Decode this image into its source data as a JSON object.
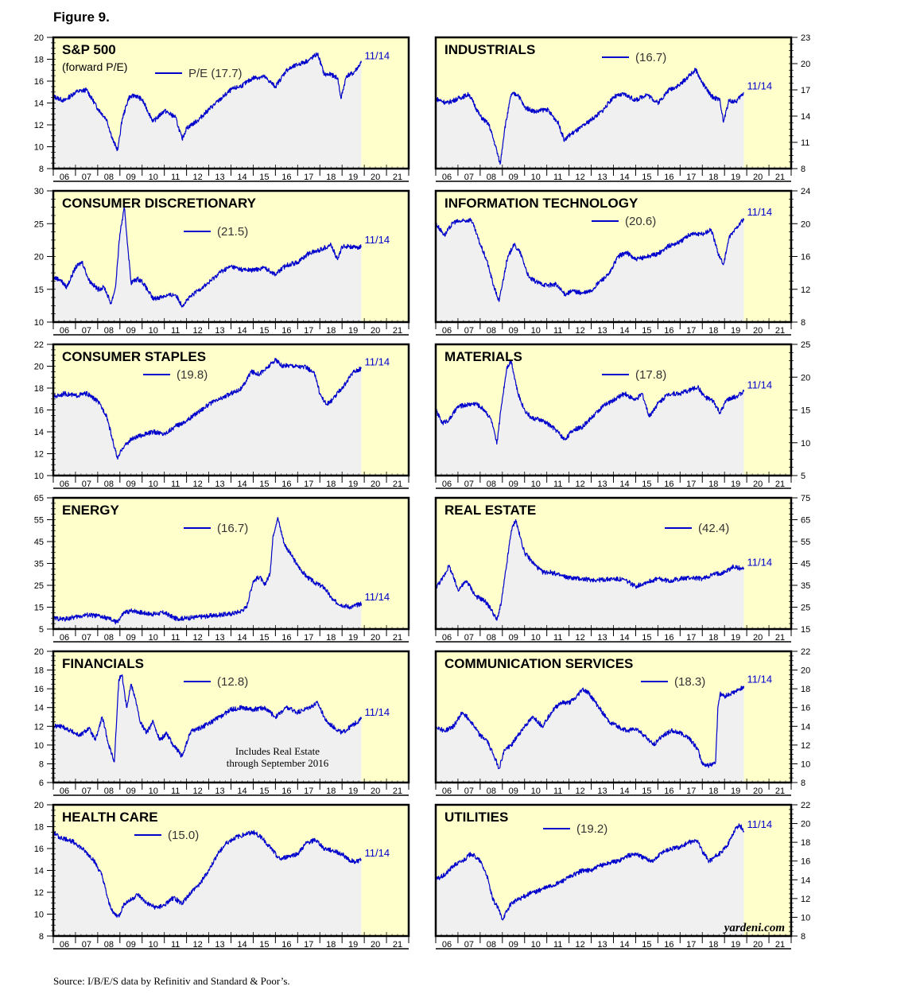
{
  "figure": {
    "title": "Figure 9.",
    "source": "Source: I/B/E/S data by Refinitiv and Standard & Poor’s.",
    "watermark": "yardeni.com"
  },
  "style": {
    "background": "#ffffcc",
    "shade": "#f0f0f0",
    "line": "#0000cc",
    "label": "#0000cc",
    "frame": "#000000"
  },
  "chart_data": [
    {
      "type": "line",
      "id": "sp500",
      "title": "S&P 500",
      "subtitle": "(forward P/E)",
      "legend": "P/E (17.7)",
      "end_label": "11/14",
      "ylim": [
        8,
        20
      ],
      "yticks": [
        8,
        10,
        12,
        14,
        16,
        18,
        20
      ],
      "axis_side": "left",
      "start_year": 2006,
      "end_year": 2022,
      "x": [
        2006.0,
        2006.5,
        2007.0,
        2007.5,
        2008.0,
        2008.4,
        2008.7,
        2008.9,
        2009.1,
        2009.4,
        2009.7,
        2010.0,
        2010.5,
        2011.0,
        2011.5,
        2011.8,
        2012.0,
        2012.5,
        2013.0,
        2013.5,
        2014.0,
        2014.5,
        2015.0,
        2015.5,
        2016.0,
        2016.5,
        2017.0,
        2017.5,
        2017.9,
        2018.2,
        2018.5,
        2018.8,
        2018.95,
        2019.2,
        2019.5,
        2019.87
      ],
      "y": [
        14.6,
        14.2,
        15.0,
        15.2,
        13.5,
        12.5,
        10.5,
        9.7,
        12.5,
        14.5,
        14.7,
        14.3,
        12.3,
        13.3,
        12.7,
        10.7,
        11.7,
        12.4,
        13.4,
        14.3,
        15.2,
        15.6,
        16.3,
        16.4,
        15.5,
        17.0,
        17.5,
        17.9,
        18.5,
        16.6,
        16.6,
        16.3,
        14.4,
        16.5,
        16.7,
        17.7
      ]
    },
    {
      "type": "line",
      "id": "industrials",
      "title": "INDUSTRIALS",
      "legend": "(16.7)",
      "end_label": "11/14",
      "ylim": [
        8,
        23
      ],
      "yticks": [
        8,
        11,
        14,
        17,
        20,
        23
      ],
      "axis_side": "right",
      "start_year": 2006,
      "end_year": 2022,
      "x": [
        2006.0,
        2006.5,
        2007.0,
        2007.5,
        2008.0,
        2008.4,
        2008.7,
        2008.9,
        2009.1,
        2009.4,
        2009.7,
        2010.0,
        2010.5,
        2011.0,
        2011.5,
        2011.8,
        2012.0,
        2012.5,
        2013.0,
        2013.5,
        2014.0,
        2014.5,
        2015.0,
        2015.5,
        2016.0,
        2016.5,
        2017.0,
        2017.4,
        2017.7,
        2018.0,
        2018.4,
        2018.8,
        2018.95,
        2019.2,
        2019.5,
        2019.87
      ],
      "y": [
        16.0,
        15.5,
        16.0,
        16.5,
        14.0,
        13.0,
        10.5,
        8.5,
        12.5,
        16.5,
        16.5,
        15.0,
        14.5,
        14.8,
        13.3,
        11.2,
        11.8,
        12.6,
        13.6,
        14.6,
        16.2,
        16.5,
        15.8,
        16.5,
        15.5,
        17.0,
        17.6,
        18.6,
        19.3,
        17.8,
        16.3,
        15.8,
        13.3,
        15.8,
        15.6,
        16.7
      ]
    },
    {
      "type": "line",
      "id": "consumer_discretionary",
      "title": "CONSUMER DISCRETIONARY",
      "legend": "(21.5)",
      "end_label": "11/14",
      "ylim": [
        10,
        30
      ],
      "yticks": [
        10,
        15,
        20,
        25,
        30
      ],
      "axis_side": "left",
      "start_year": 2006,
      "end_year": 2022,
      "x": [
        2006.0,
        2006.3,
        2006.6,
        2007.0,
        2007.3,
        2007.6,
        2008.0,
        2008.3,
        2008.6,
        2008.8,
        2009.0,
        2009.2,
        2009.5,
        2009.8,
        2010.0,
        2010.5,
        2011.0,
        2011.5,
        2011.8,
        2012.0,
        2012.5,
        2013.0,
        2013.5,
        2014.0,
        2014.5,
        2015.0,
        2015.5,
        2016.0,
        2016.5,
        2017.0,
        2017.5,
        2018.0,
        2018.5,
        2018.8,
        2019.0,
        2019.3,
        2019.6,
        2019.87
      ],
      "y": [
        16.8,
        16.5,
        15.3,
        18.3,
        19.2,
        16.4,
        15.0,
        15.3,
        12.8,
        15.3,
        23.5,
        27.4,
        16.0,
        16.6,
        16.2,
        13.5,
        14.0,
        14.2,
        12.5,
        13.3,
        14.8,
        16.0,
        17.6,
        18.5,
        18.0,
        17.9,
        18.3,
        17.3,
        18.7,
        19.1,
        20.5,
        21.0,
        21.8,
        19.5,
        21.5,
        21.6,
        21.3,
        21.5
      ]
    },
    {
      "type": "line",
      "id": "information_technology",
      "title": "INFORMATION TECHNOLOGY",
      "legend": "(20.6)",
      "end_label": "11/14",
      "ylim": [
        8,
        24
      ],
      "yticks": [
        8,
        12,
        16,
        20,
        24
      ],
      "axis_side": "right",
      "start_year": 2006,
      "end_year": 2022,
      "x": [
        2006.0,
        2006.4,
        2006.8,
        2007.2,
        2007.6,
        2008.0,
        2008.3,
        2008.6,
        2008.85,
        2009.2,
        2009.5,
        2009.8,
        2010.2,
        2010.6,
        2011.0,
        2011.4,
        2011.8,
        2012.2,
        2012.6,
        2013.0,
        2013.4,
        2013.8,
        2014.2,
        2014.6,
        2015.0,
        2015.5,
        2016.0,
        2016.5,
        2017.0,
        2017.5,
        2018.0,
        2018.4,
        2018.7,
        2018.95,
        2019.2,
        2019.5,
        2019.87
      ],
      "y": [
        20.0,
        18.6,
        20.2,
        20.3,
        20.5,
        17.5,
        15.5,
        12.5,
        10.5,
        15.5,
        17.5,
        16.5,
        13.4,
        12.8,
        12.5,
        12.6,
        11.4,
        11.8,
        11.5,
        11.8,
        13.0,
        13.8,
        16.0,
        16.5,
        15.6,
        16.0,
        16.3,
        17.3,
        17.8,
        18.8,
        18.7,
        19.3,
        16.5,
        15.0,
        18.2,
        19.4,
        20.6
      ]
    },
    {
      "type": "line",
      "id": "consumer_staples",
      "title": "CONSUMER STAPLES",
      "legend": "(19.8)",
      "end_label": "11/14",
      "ylim": [
        10,
        22
      ],
      "yticks": [
        10,
        12,
        14,
        16,
        18,
        20,
        22
      ],
      "axis_side": "left",
      "start_year": 2006,
      "end_year": 2022,
      "x": [
        2006.0,
        2006.5,
        2007.0,
        2007.5,
        2008.0,
        2008.4,
        2008.7,
        2008.9,
        2009.1,
        2009.5,
        2010.0,
        2010.5,
        2011.0,
        2011.5,
        2012.0,
        2012.5,
        2013.0,
        2013.5,
        2014.0,
        2014.5,
        2014.9,
        2015.3,
        2015.6,
        2016.0,
        2016.3,
        2016.7,
        2017.0,
        2017.4,
        2017.8,
        2018.0,
        2018.3,
        2018.6,
        2018.9,
        2019.2,
        2019.5,
        2019.87
      ],
      "y": [
        17.2,
        17.5,
        17.3,
        17.5,
        16.8,
        15.5,
        13.0,
        11.5,
        12.5,
        13.3,
        13.7,
        14.0,
        13.8,
        14.5,
        15.0,
        15.8,
        16.5,
        17.0,
        17.5,
        18.0,
        19.5,
        19.3,
        19.8,
        20.6,
        20.0,
        20.1,
        20.0,
        19.9,
        19.2,
        17.5,
        16.5,
        17.0,
        17.8,
        18.5,
        19.5,
        19.8
      ]
    },
    {
      "type": "line",
      "id": "materials",
      "title": "MATERIALS",
      "legend": "(17.8)",
      "end_label": "11/14",
      "ylim": [
        5,
        25
      ],
      "yticks": [
        5,
        10,
        15,
        20,
        25
      ],
      "axis_side": "right",
      "start_year": 2006,
      "end_year": 2022,
      "x": [
        2006.0,
        2006.3,
        2006.6,
        2007.0,
        2007.4,
        2007.8,
        2008.2,
        2008.5,
        2008.75,
        2008.95,
        2009.2,
        2009.4,
        2009.7,
        2010.0,
        2010.3,
        2010.7,
        2011.0,
        2011.4,
        2011.8,
        2012.2,
        2012.6,
        2013.0,
        2013.5,
        2014.0,
        2014.5,
        2015.0,
        2015.3,
        2015.6,
        2016.0,
        2016.5,
        2017.0,
        2017.4,
        2017.8,
        2018.1,
        2018.5,
        2018.8,
        2019.1,
        2019.5,
        2019.87
      ],
      "y": [
        15.0,
        13.0,
        13.5,
        15.5,
        15.8,
        16.0,
        15.0,
        13.5,
        9.8,
        15.5,
        21.5,
        22.5,
        17.5,
        15.0,
        13.8,
        13.5,
        13.0,
        12.0,
        10.5,
        12.0,
        12.4,
        13.8,
        15.5,
        16.5,
        17.5,
        16.5,
        17.5,
        14.0,
        16.0,
        17.5,
        17.5,
        18.0,
        18.5,
        17.0,
        16.3,
        14.5,
        16.5,
        17.0,
        17.8
      ]
    },
    {
      "type": "line",
      "id": "energy",
      "title": "ENERGY",
      "legend": "(16.7)",
      "end_label": "11/14",
      "ylim": [
        5,
        65
      ],
      "yticks": [
        5,
        15,
        25,
        35,
        45,
        55,
        65
      ],
      "axis_side": "left",
      "start_year": 2006,
      "end_year": 2022,
      "x": [
        2006.0,
        2006.5,
        2007.0,
        2007.5,
        2008.0,
        2008.5,
        2008.85,
        2009.2,
        2009.6,
        2010.0,
        2010.5,
        2011.0,
        2011.5,
        2012.0,
        2012.5,
        2013.0,
        2013.5,
        2014.0,
        2014.4,
        2014.7,
        2015.0,
        2015.3,
        2015.5,
        2015.75,
        2015.9,
        2016.1,
        2016.4,
        2016.7,
        2017.0,
        2017.4,
        2017.8,
        2018.2,
        2018.6,
        2019.0,
        2019.4,
        2019.87
      ],
      "y": [
        10.0,
        9.5,
        10.5,
        11.5,
        11.0,
        9.8,
        8.0,
        12.5,
        13.5,
        12.5,
        11.8,
        12.5,
        9.8,
        10.0,
        10.5,
        11.0,
        11.5,
        12.0,
        13.0,
        15.0,
        27.0,
        29.0,
        25.0,
        30.0,
        48.0,
        56.0,
        44.0,
        39.0,
        34.0,
        29.0,
        26.0,
        24.0,
        18.0,
        16.0,
        15.0,
        16.7
      ]
    },
    {
      "type": "line",
      "id": "real_estate",
      "title": "REAL ESTATE",
      "legend": "(42.4)",
      "end_label": "11/14",
      "ylim": [
        15,
        75
      ],
      "yticks": [
        15,
        25,
        35,
        45,
        55,
        65,
        75
      ],
      "axis_side": "right",
      "start_year": 2006,
      "end_year": 2022,
      "x": [
        2006.0,
        2006.3,
        2006.6,
        2007.0,
        2007.4,
        2007.8,
        2008.2,
        2008.5,
        2008.75,
        2008.95,
        2009.2,
        2009.4,
        2009.6,
        2009.8,
        2010.0,
        2010.4,
        2010.8,
        2011.2,
        2011.6,
        2012.0,
        2012.5,
        2013.0,
        2013.5,
        2014.0,
        2014.5,
        2015.0,
        2015.5,
        2016.0,
        2016.5,
        2017.0,
        2017.5,
        2018.0,
        2018.5,
        2019.0,
        2019.4,
        2019.87
      ],
      "y": [
        34.0,
        38.0,
        44.0,
        33.0,
        37.0,
        30.0,
        28.0,
        24.0,
        19.0,
        27.0,
        45.0,
        60.0,
        65.0,
        57.0,
        50.0,
        45.0,
        41.0,
        41.0,
        39.5,
        38.5,
        38.0,
        37.5,
        37.5,
        38.0,
        37.5,
        34.5,
        36.5,
        38.0,
        37.0,
        38.0,
        38.5,
        38.0,
        40.0,
        41.0,
        43.5,
        42.4
      ]
    },
    {
      "type": "line",
      "id": "financials",
      "title": "FINANCIALS",
      "legend": "(12.8)",
      "end_label": "11/14",
      "ylim": [
        6,
        20
      ],
      "yticks": [
        6,
        8,
        10,
        12,
        14,
        16,
        18,
        20
      ],
      "axis_side": "left",
      "start_year": 2006,
      "end_year": 2022,
      "annotation": [
        "Includes Real Estate",
        "through September 2016"
      ],
      "x": [
        2006.0,
        2006.4,
        2006.8,
        2007.2,
        2007.6,
        2007.9,
        2008.2,
        2008.5,
        2008.75,
        2008.95,
        2009.1,
        2009.3,
        2009.5,
        2009.7,
        2009.9,
        2010.2,
        2010.5,
        2010.8,
        2011.1,
        2011.4,
        2011.8,
        2012.2,
        2012.6,
        2013.0,
        2013.5,
        2014.0,
        2014.5,
        2015.0,
        2015.5,
        2016.0,
        2016.5,
        2017.0,
        2017.5,
        2017.9,
        2018.3,
        2018.7,
        2019.0,
        2019.4,
        2019.87
      ],
      "y": [
        12.0,
        12.0,
        11.5,
        11.0,
        11.8,
        10.5,
        13.0,
        10.0,
        8.2,
        17.0,
        17.5,
        14.0,
        16.5,
        15.0,
        12.5,
        11.3,
        12.5,
        10.5,
        11.3,
        10.0,
        8.8,
        11.5,
        11.8,
        12.3,
        13.0,
        13.8,
        14.0,
        13.8,
        14.0,
        13.0,
        14.0,
        13.5,
        14.0,
        14.5,
        12.5,
        11.8,
        11.3,
        12.0,
        12.8
      ]
    },
    {
      "type": "line",
      "id": "communication_services",
      "title": "COMMUNICATION SERVICES",
      "legend": "(18.3)",
      "end_label": "11/14",
      "ylim": [
        8,
        22
      ],
      "yticks": [
        8,
        10,
        12,
        14,
        16,
        18,
        20,
        22
      ],
      "axis_side": "right",
      "start_year": 2006,
      "end_year": 2022,
      "x": [
        2006.0,
        2006.4,
        2006.8,
        2007.2,
        2007.6,
        2008.0,
        2008.3,
        2008.6,
        2008.85,
        2009.1,
        2009.4,
        2009.7,
        2010.0,
        2010.4,
        2010.8,
        2011.2,
        2011.6,
        2012.0,
        2012.3,
        2012.6,
        2012.9,
        2013.2,
        2013.5,
        2013.8,
        2014.2,
        2014.6,
        2015.0,
        2015.4,
        2015.8,
        2016.2,
        2016.6,
        2017.0,
        2017.4,
        2017.8,
        2018.0,
        2018.3,
        2018.6,
        2018.7,
        2018.8,
        2019.0,
        2019.3,
        2019.6,
        2019.87
      ],
      "y": [
        14.0,
        13.5,
        14.0,
        15.5,
        14.5,
        13.0,
        12.5,
        11.0,
        9.5,
        11.5,
        12.0,
        13.0,
        14.0,
        15.0,
        14.0,
        15.5,
        16.5,
        16.5,
        17.0,
        18.0,
        17.5,
        16.5,
        15.5,
        14.5,
        14.0,
        13.5,
        13.8,
        13.0,
        12.0,
        13.0,
        13.5,
        13.3,
        12.8,
        11.5,
        10.0,
        9.8,
        10.2,
        16.0,
        17.5,
        17.2,
        17.5,
        17.8,
        18.3
      ]
    },
    {
      "type": "line",
      "id": "health_care",
      "title": "HEALTH CARE",
      "legend": "(15.0)",
      "end_label": "11/14",
      "ylim": [
        8,
        20
      ],
      "yticks": [
        8,
        10,
        12,
        14,
        16,
        18,
        20
      ],
      "axis_side": "left",
      "start_year": 2006,
      "end_year": 2022,
      "x": [
        2006.0,
        2006.3,
        2006.7,
        2007.0,
        2007.4,
        2007.8,
        2008.2,
        2008.5,
        2008.75,
        2008.95,
        2009.2,
        2009.5,
        2009.8,
        2010.2,
        2010.6,
        2011.0,
        2011.4,
        2011.8,
        2012.2,
        2012.6,
        2013.0,
        2013.4,
        2013.8,
        2014.2,
        2014.6,
        2015.0,
        2015.4,
        2015.8,
        2016.2,
        2016.6,
        2017.0,
        2017.4,
        2017.8,
        2018.2,
        2018.6,
        2019.0,
        2019.3,
        2019.6,
        2019.87
      ],
      "y": [
        17.5,
        17.0,
        16.8,
        16.5,
        15.8,
        15.0,
        13.5,
        11.0,
        10.0,
        9.8,
        11.0,
        11.3,
        11.8,
        11.0,
        10.6,
        10.8,
        11.5,
        11.0,
        12.0,
        12.8,
        14.0,
        15.5,
        16.5,
        17.0,
        17.3,
        17.5,
        17.0,
        16.0,
        15.0,
        15.3,
        15.5,
        16.5,
        16.8,
        16.0,
        15.8,
        15.5,
        15.0,
        14.8,
        15.0
      ]
    },
    {
      "type": "line",
      "id": "utilities",
      "title": "UTILITIES",
      "legend": "(19.2)",
      "end_label": "11/14",
      "ylim": [
        8,
        22
      ],
      "yticks": [
        8,
        10,
        12,
        14,
        16,
        18,
        20,
        22
      ],
      "axis_side": "right",
      "start_year": 2006,
      "end_year": 2022,
      "x": [
        2006.0,
        2006.4,
        2006.8,
        2007.2,
        2007.6,
        2008.0,
        2008.3,
        2008.55,
        2008.8,
        2009.0,
        2009.4,
        2009.8,
        2010.2,
        2010.6,
        2011.0,
        2011.4,
        2011.8,
        2012.2,
        2012.6,
        2013.0,
        2013.4,
        2013.8,
        2014.2,
        2014.6,
        2015.0,
        2015.4,
        2015.8,
        2016.2,
        2016.6,
        2017.0,
        2017.4,
        2017.8,
        2018.0,
        2018.3,
        2018.6,
        2018.9,
        2019.2,
        2019.5,
        2019.7,
        2019.87
      ],
      "y": [
        14.0,
        14.5,
        15.5,
        16.0,
        16.8,
        16.0,
        14.5,
        12.0,
        11.0,
        9.8,
        11.5,
        12.0,
        12.5,
        12.8,
        13.2,
        13.5,
        14.0,
        14.5,
        15.0,
        15.0,
        15.5,
        15.8,
        16.0,
        16.5,
        16.8,
        16.3,
        16.0,
        17.0,
        17.3,
        17.5,
        18.0,
        18.2,
        17.0,
        16.0,
        16.5,
        17.0,
        18.0,
        19.5,
        19.8,
        19.2
      ]
    }
  ]
}
